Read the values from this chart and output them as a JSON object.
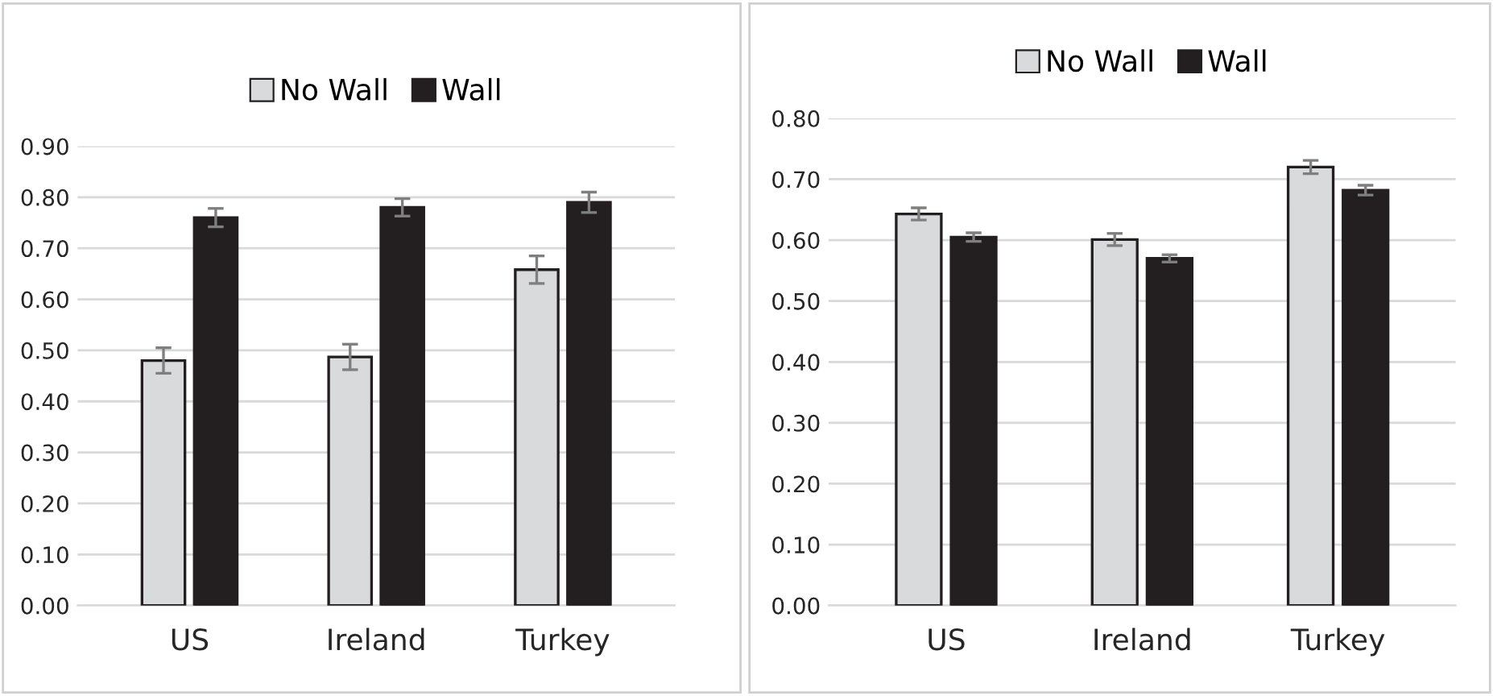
{
  "chart_data": [
    {
      "type": "bar",
      "categories": [
        "US",
        "Ireland",
        "Turkey"
      ],
      "ylim": [
        0,
        0.9
      ],
      "yticks": [
        {
          "value": 0,
          "label": "0.00"
        },
        {
          "value": 0.1,
          "label": "0.10"
        },
        {
          "value": 0.2,
          "label": "0.20"
        },
        {
          "value": 0.3,
          "label": "0.30"
        },
        {
          "value": 0.4,
          "label": "0.40"
        },
        {
          "value": 0.5,
          "label": "0.50"
        },
        {
          "value": 0.6,
          "label": "0.60"
        },
        {
          "value": 0.7,
          "label": "0.70"
        },
        {
          "value": 0.8,
          "label": "0.80"
        },
        {
          "value": 0.9,
          "label": "0.90"
        }
      ],
      "grid": "y",
      "legend": "top",
      "series": [
        {
          "name": "No Wall",
          "color": "#d9dadc",
          "values": [
            0.48,
            0.487,
            0.658
          ],
          "errors": [
            0.025,
            0.025,
            0.027
          ]
        },
        {
          "name": "Wall",
          "color": "#231f20",
          "values": [
            0.76,
            0.78,
            0.79
          ],
          "errors": [
            0.018,
            0.017,
            0.02
          ]
        }
      ]
    },
    {
      "type": "bar",
      "categories": [
        "US",
        "Ireland",
        "Turkey"
      ],
      "ylim": [
        0,
        0.8
      ],
      "yticks": [
        {
          "value": 0,
          "label": "0.00"
        },
        {
          "value": 0.1,
          "label": "0.10"
        },
        {
          "value": 0.2,
          "label": "0.20"
        },
        {
          "value": 0.3,
          "label": "0.30"
        },
        {
          "value": 0.4,
          "label": "0.40"
        },
        {
          "value": 0.5,
          "label": "0.50"
        },
        {
          "value": 0.6,
          "label": "0.60"
        },
        {
          "value": 0.7,
          "label": "0.70"
        },
        {
          "value": 0.8,
          "label": "0.80"
        }
      ],
      "grid": "y",
      "legend": "top",
      "series": [
        {
          "name": "No Wall",
          "color": "#d9dadc",
          "values": [
            0.643,
            0.601,
            0.72
          ],
          "errors": [
            0.01,
            0.01,
            0.011
          ]
        },
        {
          "name": "Wall",
          "color": "#231f20",
          "values": [
            0.605,
            0.57,
            0.682
          ],
          "errors": [
            0.007,
            0.006,
            0.008
          ]
        }
      ]
    }
  ]
}
